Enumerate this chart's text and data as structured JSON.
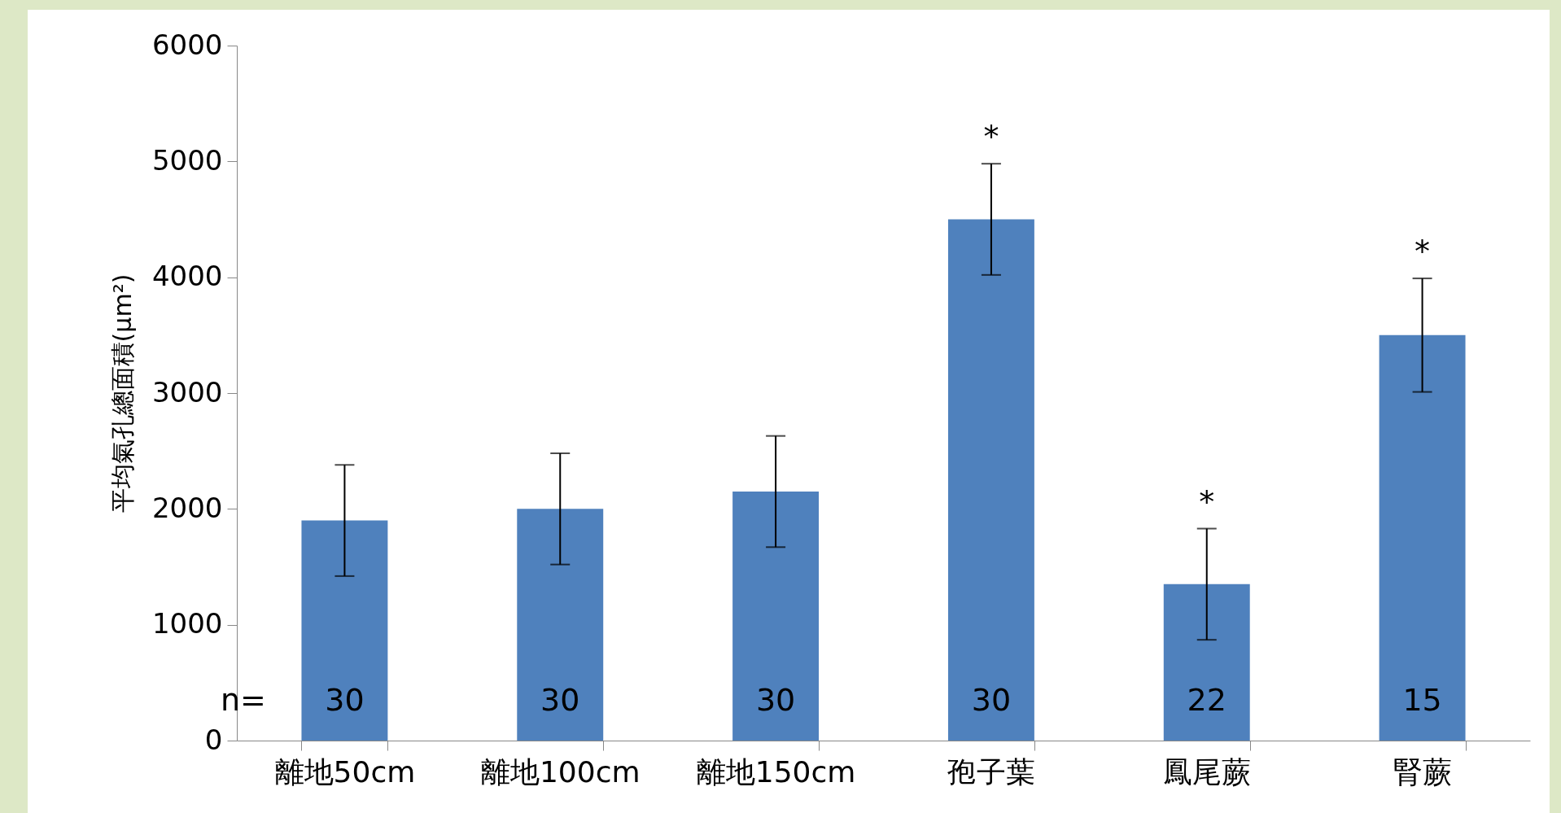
{
  "chart_data": {
    "type": "bar",
    "ylabel": "平均氣孔總面積(μm²)",
    "categories": [
      "離地50cm",
      "離地100cm",
      "離地150cm",
      "孢子葉",
      "鳳尾蕨",
      "腎蕨"
    ],
    "values": [
      1900,
      2000,
      2150,
      4500,
      1350,
      3500
    ],
    "errors": [
      480,
      480,
      480,
      480,
      480,
      490
    ],
    "color": "#4f81bd",
    "ylim": [
      0,
      6000
    ],
    "yticks": [
      0,
      1000,
      2000,
      3000,
      4000,
      5000,
      6000
    ],
    "grid": false,
    "value_labels": [
      null,
      null,
      null,
      "*",
      "*",
      "*"
    ],
    "annotations": [
      "n=",
      "30",
      "30",
      "30",
      "30",
      "22",
      "15"
    ]
  }
}
